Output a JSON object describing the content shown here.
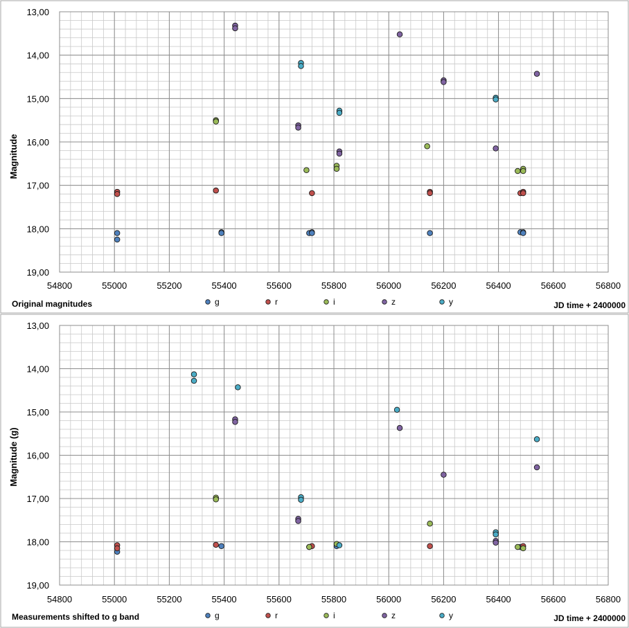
{
  "charts": [
    {
      "ylabel": "Magnitude",
      "caption": "Original magnitudes",
      "xlabel": "JD time + 2400000"
    },
    {
      "ylabel": "Magnitude (g)",
      "caption": "Measurements shifted to g band",
      "xlabel": "JD time + 2400000"
    }
  ],
  "chart_data": [
    {
      "type": "scatter",
      "title": "",
      "xlabel": "JD time + 2400000",
      "ylabel": "Magnitude",
      "xlim": [
        54800,
        56800
      ],
      "ylim": [
        13,
        19
      ],
      "y_inverted": true,
      "x_ticks": [
        "54800",
        "55000",
        "55200",
        "55400",
        "55600",
        "55800",
        "56000",
        "56200",
        "56400",
        "56600",
        "56800"
      ],
      "y_ticks": [
        "13,00",
        "14,00",
        "15,00",
        "16,00",
        "17,00",
        "18,00",
        "19,00"
      ],
      "grid": true,
      "legend_position": "bottom",
      "series": [
        {
          "name": "g",
          "color": "#4f81bd",
          "points": [
            [
              55010,
              18.1
            ],
            [
              55010,
              18.25
            ],
            [
              55390,
              18.08
            ],
            [
              55390,
              18.1
            ],
            [
              55710,
              18.1
            ],
            [
              55720,
              18.08
            ],
            [
              55720,
              18.1
            ],
            [
              56150,
              18.1
            ],
            [
              56480,
              18.08
            ],
            [
              56490,
              18.08
            ],
            [
              56490,
              18.1
            ]
          ]
        },
        {
          "name": "r",
          "color": "#c0504d",
          "points": [
            [
              55010,
              17.15
            ],
            [
              55010,
              17.2
            ],
            [
              55370,
              17.12
            ],
            [
              55720,
              17.18
            ],
            [
              56150,
              17.15
            ],
            [
              56150,
              17.18
            ],
            [
              56480,
              17.18
            ],
            [
              56490,
              17.15
            ],
            [
              56490,
              17.18
            ]
          ]
        },
        {
          "name": "i",
          "color": "#9bbb59",
          "points": [
            [
              55370,
              15.5
            ],
            [
              55370,
              15.53
            ],
            [
              55700,
              16.65
            ],
            [
              55810,
              16.55
            ],
            [
              55810,
              16.62
            ],
            [
              56140,
              16.1
            ],
            [
              56470,
              16.67
            ],
            [
              56490,
              16.62
            ],
            [
              56490,
              16.67
            ]
          ]
        },
        {
          "name": "z",
          "color": "#8064a2",
          "points": [
            [
              55440,
              13.32
            ],
            [
              55440,
              13.38
            ],
            [
              55670,
              15.62
            ],
            [
              55670,
              15.67
            ],
            [
              55820,
              16.22
            ],
            [
              55820,
              16.27
            ],
            [
              56040,
              13.52
            ],
            [
              56200,
              14.58
            ],
            [
              56200,
              14.62
            ],
            [
              56390,
              16.15
            ],
            [
              56540,
              14.43
            ]
          ]
        },
        {
          "name": "y",
          "color": "#4bacc6",
          "points": [
            [
              55680,
              14.18
            ],
            [
              55680,
              14.25
            ],
            [
              55820,
              15.28
            ],
            [
              55820,
              15.33
            ],
            [
              56390,
              14.98
            ],
            [
              56390,
              15.02
            ]
          ]
        }
      ]
    },
    {
      "type": "scatter",
      "title": "",
      "xlabel": "JD time + 2400000",
      "ylabel": "Magnitude (g)",
      "xlim": [
        54800,
        56800
      ],
      "ylim": [
        13,
        19
      ],
      "y_inverted": true,
      "x_ticks": [
        "54800",
        "55000",
        "55200",
        "55400",
        "55600",
        "55800",
        "56000",
        "56200",
        "56400",
        "56600",
        "56800"
      ],
      "y_ticks": [
        "13,00",
        "14,00",
        "15,00",
        "16,00",
        "17,00",
        "18,00",
        "19,00"
      ],
      "grid": true,
      "legend_position": "bottom",
      "series": [
        {
          "name": "g",
          "color": "#4f81bd",
          "points": [
            [
              55010,
              18.23
            ],
            [
              55390,
              18.1
            ],
            [
              55710,
              18.12
            ],
            [
              55810,
              18.1
            ],
            [
              56480,
              18.12
            ]
          ]
        },
        {
          "name": "r",
          "color": "#c0504d",
          "points": [
            [
              55010,
              18.08
            ],
            [
              55010,
              18.15
            ],
            [
              55370,
              18.07
            ],
            [
              55720,
              18.1
            ],
            [
              56150,
              18.1
            ],
            [
              56490,
              18.1
            ]
          ]
        },
        {
          "name": "i",
          "color": "#9bbb59",
          "points": [
            [
              55370,
              16.98
            ],
            [
              55370,
              17.02
            ],
            [
              55710,
              18.12
            ],
            [
              55810,
              18.05
            ],
            [
              56150,
              17.58
            ],
            [
              56470,
              18.12
            ],
            [
              56490,
              18.15
            ]
          ]
        },
        {
          "name": "z",
          "color": "#8064a2",
          "points": [
            [
              55440,
              15.17
            ],
            [
              55440,
              15.23
            ],
            [
              55670,
              17.47
            ],
            [
              55670,
              17.52
            ],
            [
              56040,
              15.37
            ],
            [
              56200,
              16.45
            ],
            [
              56390,
              17.98
            ],
            [
              56390,
              18.02
            ],
            [
              56540,
              16.28
            ]
          ]
        },
        {
          "name": "y",
          "color": "#4bacc6",
          "points": [
            [
              55290,
              14.13
            ],
            [
              55290,
              14.28
            ],
            [
              55450,
              14.43
            ],
            [
              55680,
              16.97
            ],
            [
              55680,
              17.03
            ],
            [
              55820,
              18.08
            ],
            [
              56030,
              14.95
            ],
            [
              56390,
              17.78
            ],
            [
              56390,
              17.83
            ],
            [
              56540,
              15.63
            ]
          ]
        }
      ]
    }
  ]
}
